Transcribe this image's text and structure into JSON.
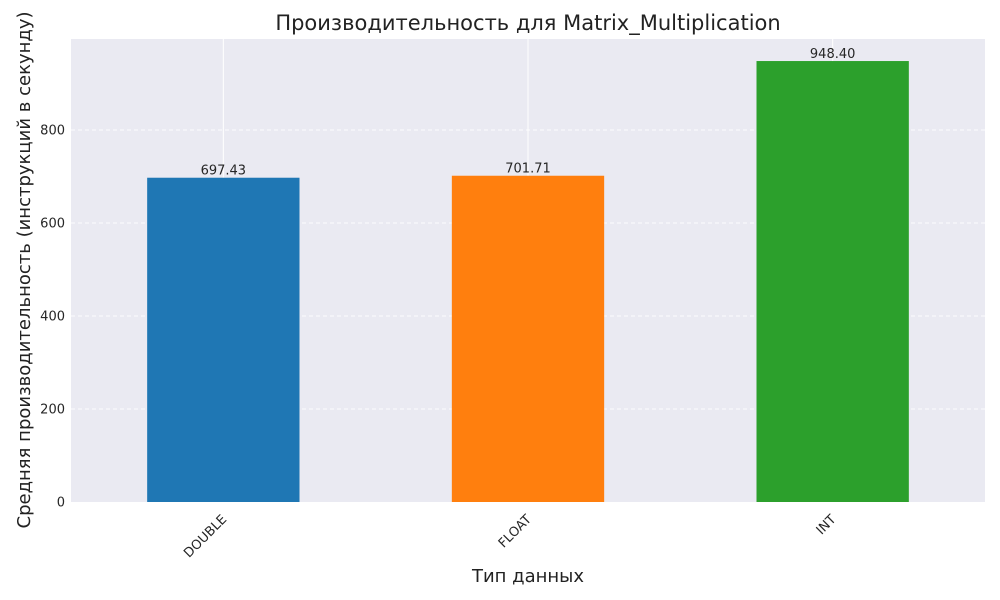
{
  "chart_data": {
    "type": "bar",
    "title": "Производительность для  Matrix_Multiplication",
    "xlabel": "Тип данных",
    "ylabel": "Средняя производительность (инструкций в секунду)",
    "categories": [
      "DOUBLE",
      "FLOAT",
      "INT"
    ],
    "values": [
      697.43,
      701.71,
      948.4
    ],
    "value_labels": [
      "697.43",
      "701.71",
      "948.40"
    ],
    "colors": [
      "#1f77b4",
      "#ff7f0e",
      "#2ca02c"
    ],
    "ylim": [
      0,
      995.8
    ],
    "yticks": [
      0,
      200,
      400,
      600,
      800
    ],
    "ytick_labels": [
      "0",
      "200",
      "400",
      "600",
      "800"
    ],
    "grid": true,
    "background": "#eaeaf2",
    "x_tick_rotation": "45 degrees"
  }
}
